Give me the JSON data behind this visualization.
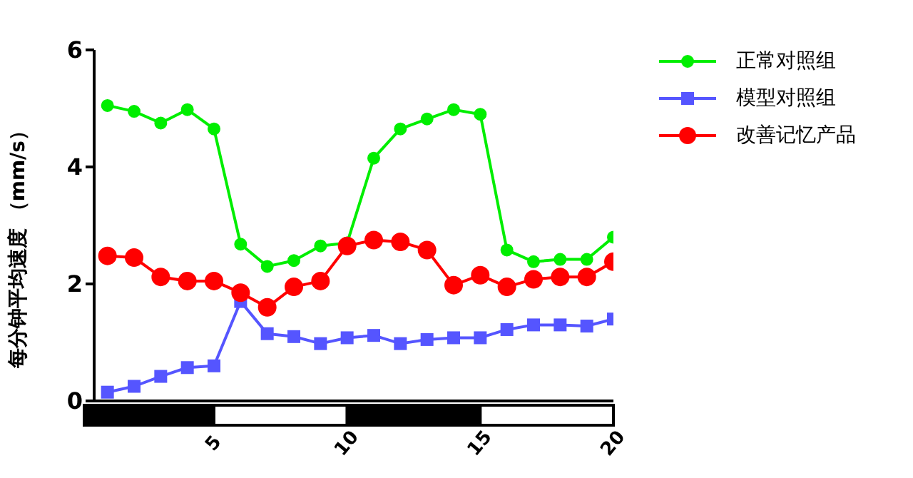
{
  "chart_data": {
    "type": "line",
    "ylabel": "每分钟平均速度 （mm/s）",
    "x": [
      1,
      2,
      3,
      4,
      5,
      6,
      7,
      8,
      9,
      10,
      11,
      12,
      13,
      14,
      15,
      16,
      17,
      18,
      19,
      20
    ],
    "xlim": [
      0.5,
      20
    ],
    "xticks": [
      5,
      10,
      15,
      20
    ],
    "ylim": [
      0,
      6
    ],
    "yticks": [
      0,
      2,
      4,
      6
    ],
    "grid": false,
    "legend": "top right",
    "line_style": "solid",
    "series": [
      {
        "name": "正常对照组",
        "color": "#00ee00",
        "marker": "circle",
        "values": [
          5.05,
          4.95,
          4.75,
          4.98,
          4.65,
          2.68,
          2.3,
          2.4,
          2.65,
          2.7,
          4.15,
          4.65,
          4.82,
          4.98,
          4.9,
          2.58,
          2.38,
          2.42,
          2.42,
          2.8
        ]
      },
      {
        "name": "模型对照组",
        "color": "#5555ff",
        "marker": "square",
        "values": [
          0.15,
          0.25,
          0.42,
          0.57,
          0.6,
          1.7,
          1.15,
          1.1,
          0.98,
          1.08,
          1.12,
          0.98,
          1.05,
          1.08,
          1.08,
          1.22,
          1.3,
          1.3,
          1.28,
          1.4
        ]
      },
      {
        "name": "改善记忆产品",
        "color": "#ff0000",
        "marker": "circle",
        "values": [
          2.48,
          2.45,
          2.12,
          2.05,
          2.05,
          1.85,
          1.6,
          1.95,
          2.05,
          2.65,
          2.75,
          2.72,
          2.58,
          1.98,
          2.15,
          1.95,
          2.08,
          2.12,
          2.12,
          2.38
        ]
      }
    ]
  }
}
